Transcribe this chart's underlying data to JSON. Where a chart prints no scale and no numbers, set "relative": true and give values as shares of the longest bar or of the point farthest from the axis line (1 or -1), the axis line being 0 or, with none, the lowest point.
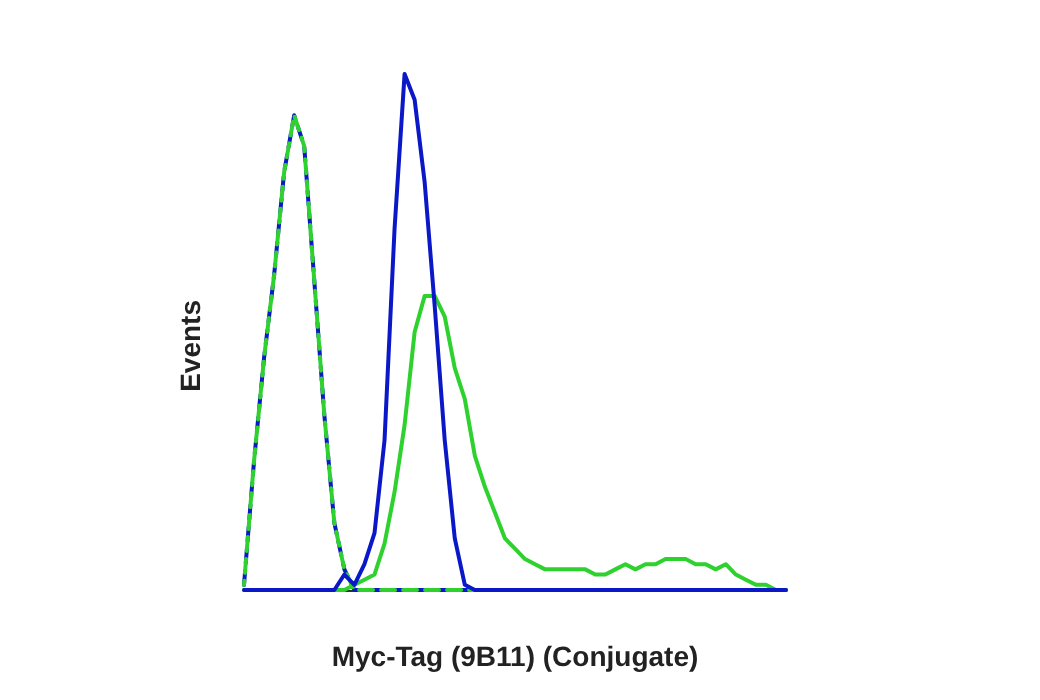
{
  "chart_data": {
    "type": "line",
    "xlabel": "Myc-Tag (9B11) (Conjugate)",
    "ylabel": "Events",
    "relative": true,
    "grid": false,
    "categories": [
      null,
      null,
      null,
      null,
      null,
      null,
      null,
      null,
      null,
      null,
      null,
      null,
      null,
      null,
      null,
      null,
      null,
      null,
      null,
      null,
      null,
      null,
      null,
      null,
      null,
      null,
      null,
      null,
      null,
      null,
      null,
      null,
      null,
      null,
      null,
      null,
      null,
      null,
      null,
      null,
      null,
      null,
      null,
      null,
      null,
      null,
      null,
      null,
      null,
      null,
      null,
      null,
      null,
      null,
      null
    ],
    "series": [
      {
        "color": "#0a18c8",
        "line_style": "dashed",
        "values": [
          0.01,
          0.25,
          0.45,
          0.61,
          0.81,
          0.92,
          0.86,
          0.6,
          0.34,
          0.13,
          0.04,
          0,
          0,
          0,
          0,
          0,
          0,
          0,
          0,
          0,
          0,
          0,
          0,
          0,
          0,
          0,
          0,
          0,
          0,
          0,
          0,
          0,
          0,
          0,
          0,
          0,
          0,
          0,
          0,
          0,
          0,
          0,
          0,
          0,
          0,
          0,
          0,
          0,
          0,
          0,
          0,
          0,
          0,
          0,
          0
        ]
      },
      {
        "color": "#2ed12e",
        "line_style": "dashed",
        "values": [
          0.01,
          0.25,
          0.45,
          0.61,
          0.81,
          0.92,
          0.86,
          0.6,
          0.34,
          0.13,
          0.04,
          0,
          0,
          0,
          0,
          0,
          0,
          0,
          0,
          0,
          0,
          0,
          0,
          0,
          0,
          0,
          0,
          0,
          0,
          0,
          0,
          0,
          0,
          0,
          0,
          0,
          0,
          0,
          0,
          0,
          0,
          0,
          0,
          0,
          0,
          0,
          0,
          0,
          0,
          0,
          0,
          0,
          0,
          0,
          0
        ]
      },
      {
        "color": "#2ed12e",
        "line_style": "solid",
        "values": [
          0,
          0,
          0,
          0,
          0,
          0,
          0,
          0,
          0,
          0,
          0,
          0.01,
          0.02,
          0.03,
          0.09,
          0.19,
          0.32,
          0.5,
          0.57,
          0.57,
          0.53,
          0.43,
          0.37,
          0.26,
          0.2,
          0.15,
          0.1,
          0.08,
          0.06,
          0.05,
          0.04,
          0.04,
          0.04,
          0.04,
          0.04,
          0.03,
          0.03,
          0.04,
          0.05,
          0.04,
          0.05,
          0.05,
          0.06,
          0.06,
          0.06,
          0.05,
          0.05,
          0.04,
          0.05,
          0.03,
          0.02,
          0.01,
          0.01,
          0,
          0
        ]
      },
      {
        "color": "#0a18c8",
        "line_style": "solid",
        "values": [
          0,
          0,
          0,
          0,
          0,
          0,
          0,
          0,
          0,
          0,
          0.03,
          0.01,
          0.05,
          0.11,
          0.29,
          0.7,
          1.0,
          0.95,
          0.79,
          0.55,
          0.29,
          0.1,
          0.01,
          0,
          0,
          0,
          0,
          0,
          0,
          0,
          0,
          0,
          0,
          0,
          0,
          0,
          0,
          0,
          0,
          0,
          0,
          0,
          0,
          0,
          0,
          0,
          0,
          0,
          0,
          0,
          0,
          0,
          0,
          0,
          0
        ]
      }
    ]
  }
}
